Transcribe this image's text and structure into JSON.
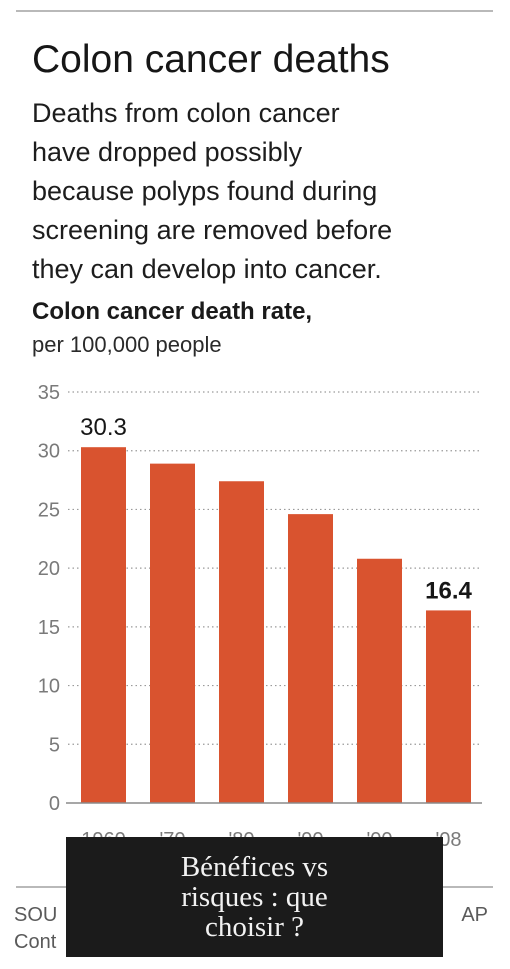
{
  "header": {
    "title": "Colon cancer deaths",
    "subtitle_lines": [
      "Deaths from colon cancer",
      "have dropped possibly",
      "because polyps found during",
      "screening are removed before",
      "they can develop into cancer."
    ]
  },
  "chart_data": {
    "type": "bar",
    "title": "Colon cancer death rate,",
    "subtitle": "per 100,000 people",
    "categories": [
      "1960",
      "'70",
      "'80",
      "'90",
      "'00",
      "'08"
    ],
    "values": [
      30.3,
      28.9,
      27.4,
      24.6,
      20.8,
      16.4
    ],
    "value_labels": [
      {
        "index": 0,
        "text": "30.3"
      },
      {
        "index": 5,
        "text": "16.4"
      }
    ],
    "ylim": [
      0,
      35
    ],
    "yticks": [
      0,
      5,
      10,
      15,
      20,
      25,
      30,
      35
    ],
    "grid": "dotted horizontal",
    "bar_color": "#d9532f"
  },
  "footer": {
    "source": "SOU",
    "source_line2": "Cont",
    "credit": "AP"
  },
  "overlay": {
    "lines": [
      "Bénéfices vs",
      "risques : que",
      "choisir ?"
    ]
  },
  "colors": {
    "bar": "#d9532f",
    "text": "#161616",
    "axis": "#8a8a8a",
    "overlay_bg": "#1b1b1b",
    "overlay_text": "#f2f2f2"
  }
}
